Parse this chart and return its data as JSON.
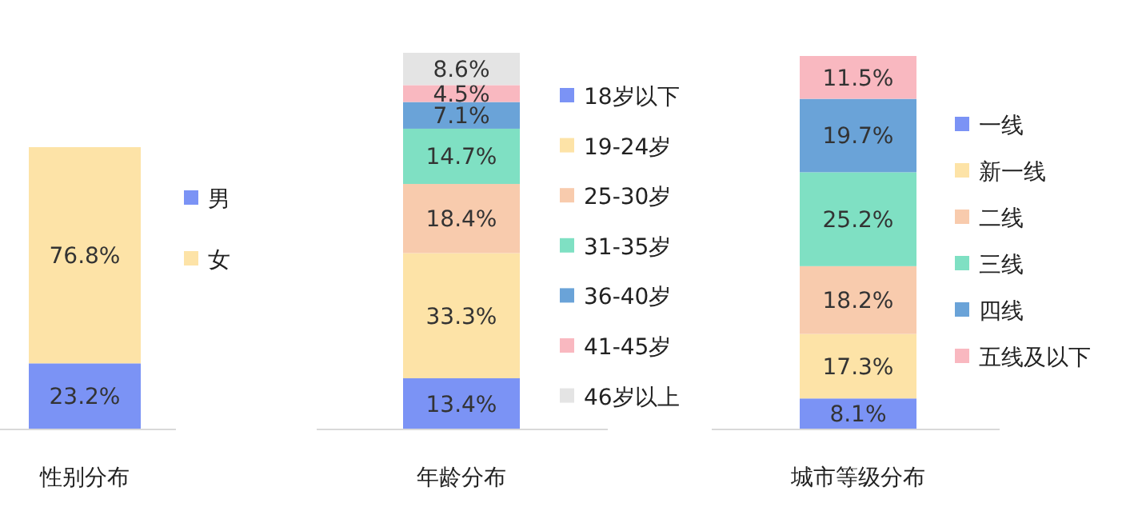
{
  "chart_data": [
    {
      "type": "bar",
      "stacked": true,
      "legend": "right",
      "categories": [
        "性别分布"
      ],
      "series": [
        {
          "name": "男",
          "color": "#7b93f5",
          "values": [
            23.2
          ],
          "value_labels": [
            "23.2%"
          ]
        },
        {
          "name": "女",
          "color": "#fde3a7",
          "values": [
            76.8
          ],
          "value_labels": [
            "76.8%"
          ]
        }
      ]
    },
    {
      "type": "bar",
      "stacked": true,
      "legend": "right",
      "categories": [
        "年龄分布"
      ],
      "series": [
        {
          "name": "18岁以下",
          "color": "#7b93f5",
          "values": [
            13.4
          ],
          "value_labels": [
            "13.4%"
          ]
        },
        {
          "name": "19-24岁",
          "color": "#fde3a7",
          "values": [
            33.3
          ],
          "value_labels": [
            "33.3%"
          ]
        },
        {
          "name": "25-30岁",
          "color": "#f8cbad",
          "values": [
            18.4
          ],
          "value_labels": [
            "18.4%"
          ]
        },
        {
          "name": "31-35岁",
          "color": "#7fe0c3",
          "values": [
            14.7
          ],
          "value_labels": [
            "14.7%"
          ]
        },
        {
          "name": "36-40岁",
          "color": "#6aa3d8",
          "values": [
            7.1
          ],
          "value_labels": [
            "7.1%"
          ]
        },
        {
          "name": "41-45岁",
          "color": "#f9b8c0",
          "values": [
            4.5
          ],
          "value_labels": [
            "4.5%"
          ]
        },
        {
          "name": "46岁以上",
          "color": "#e4e4e4",
          "values": [
            8.6
          ],
          "value_labels": [
            "8.6%"
          ]
        }
      ]
    },
    {
      "type": "bar",
      "stacked": true,
      "legend": "right",
      "categories": [
        "城市等级分布"
      ],
      "series": [
        {
          "name": "一线",
          "color": "#7b93f5",
          "values": [
            8.1
          ],
          "value_labels": [
            "8.1%"
          ]
        },
        {
          "name": "新一线",
          "color": "#fde3a7",
          "values": [
            17.3
          ],
          "value_labels": [
            "17.3%"
          ]
        },
        {
          "name": "二线",
          "color": "#f8cbad",
          "values": [
            18.2
          ],
          "value_labels": [
            "18.2%"
          ]
        },
        {
          "name": "三线",
          "color": "#7fe0c3",
          "values": [
            25.2
          ],
          "value_labels": [
            "25.2%"
          ]
        },
        {
          "name": "四线",
          "color": "#6aa3d8",
          "values": [
            19.7
          ],
          "value_labels": [
            "19.7%"
          ]
        },
        {
          "name": "五线及以下",
          "color": "#f9b8c0",
          "values": [
            11.5
          ],
          "value_labels": [
            "11.5%"
          ]
        }
      ]
    }
  ]
}
